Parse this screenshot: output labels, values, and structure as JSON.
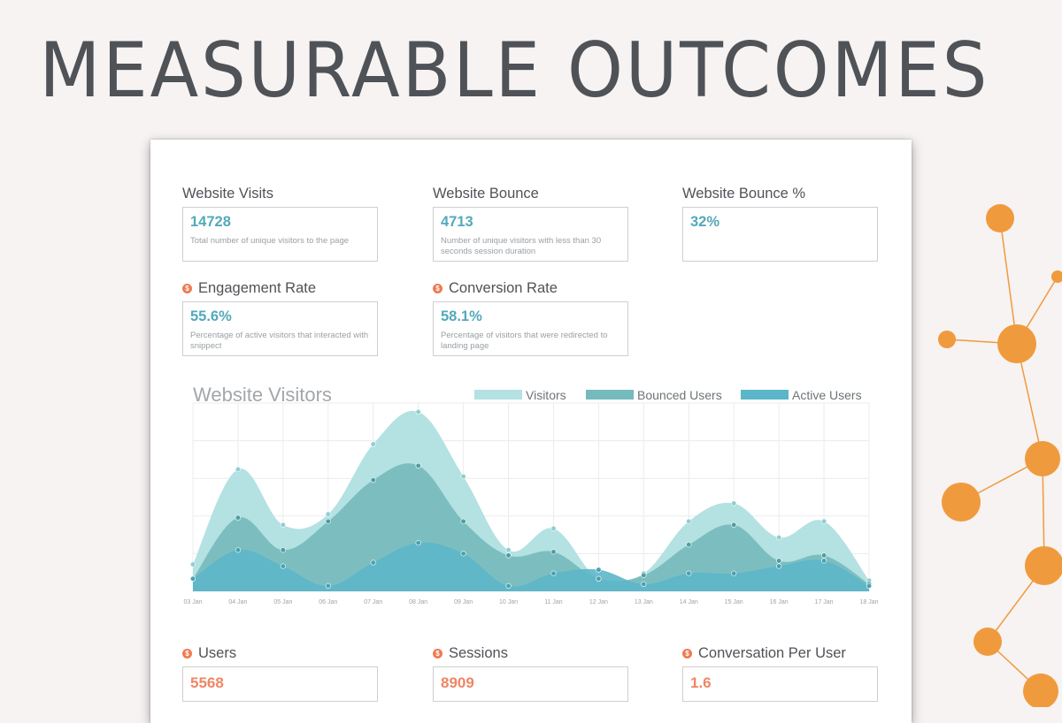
{
  "headline": "MEASURABLE OUTCOMES",
  "metrics": {
    "visits": {
      "label": "Website Visits",
      "value": "14728",
      "desc": "Total number of unique visitors to the page"
    },
    "bounce": {
      "label": "Website Bounce",
      "value": "4713",
      "desc": "Number of unique visitors with less than 30 seconds session duration"
    },
    "bounce_pct": {
      "label": "Website Bounce %",
      "value": "32%",
      "desc": ""
    },
    "engagement": {
      "label": "Engagement Rate",
      "value": "55.6%",
      "desc": "Percentage of active visitors that interacted with snippect"
    },
    "conversion": {
      "label": "Conversion Rate",
      "value": "58.1%",
      "desc": "Percentage of visitors that were redirected to landing page"
    }
  },
  "bottom_metrics": {
    "users": {
      "label": "Users",
      "value": "5568"
    },
    "sessions": {
      "label": "Sessions",
      "value": "8909"
    },
    "conv_per_user": {
      "label": "Conversation Per User",
      "value": "1.6"
    }
  },
  "colors": {
    "accent": "#53a9ba",
    "money": "#ee7a52",
    "network": "#f09a3e",
    "visitors": "#b4e1e2",
    "bounced": "#76babd",
    "active": "#5cb6c9"
  },
  "chart_data": {
    "type": "area",
    "title": "Website Visitors",
    "categories": [
      "03 Jan",
      "04 Jan",
      "05 Jan",
      "06 Jan",
      "07 Jan",
      "08 Jan",
      "09 Jan",
      "10 Jan",
      "11 Jan",
      "12 Jan",
      "13 Jan",
      "14 Jan",
      "15 Jan",
      "16 Jan",
      "17 Jan",
      "18 Jan"
    ],
    "ylim": [
      0,
      100
    ],
    "grid": true,
    "legend": "top-right",
    "series": [
      {
        "name": "Visitors",
        "values": [
          15,
          68,
          37,
          43,
          82,
          100,
          64,
          23,
          35,
          7,
          10,
          39,
          49,
          30,
          39,
          6
        ]
      },
      {
        "name": "Bounced Users",
        "values": [
          7,
          41,
          23,
          39,
          62,
          70,
          39,
          20,
          22,
          7,
          9,
          26,
          37,
          17,
          20,
          4
        ]
      },
      {
        "name": "Active Users",
        "values": [
          7,
          23,
          14,
          3,
          16,
          27,
          21,
          3,
          10,
          12,
          4,
          10,
          10,
          14,
          17,
          3
        ]
      }
    ]
  }
}
